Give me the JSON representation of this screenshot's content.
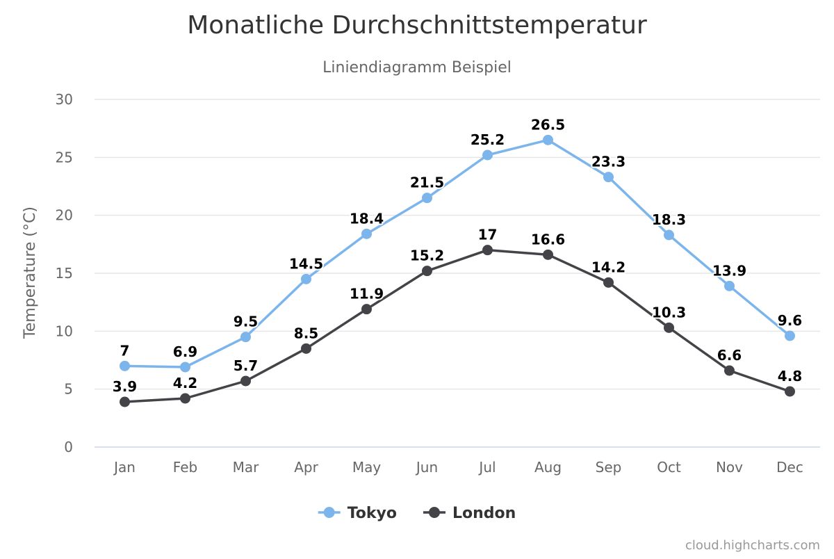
{
  "chart_data": {
    "type": "line",
    "title": "Monatliche Durchschnittstemperatur",
    "subtitle": "Liniendiagramm Beispiel",
    "ylabel": "Temperature (°C)",
    "xlabel": "",
    "categories": [
      "Jan",
      "Feb",
      "Mar",
      "Apr",
      "May",
      "Jun",
      "Jul",
      "Aug",
      "Sep",
      "Oct",
      "Nov",
      "Dec"
    ],
    "ylim": [
      0,
      30
    ],
    "yticks": [
      0,
      5,
      10,
      15,
      20,
      25,
      30
    ],
    "grid": true,
    "legend_position": "bottom-center",
    "data_labels": true,
    "series": [
      {
        "name": "Tokyo",
        "color": "#7cb5ec",
        "values": [
          7.0,
          6.9,
          9.5,
          14.5,
          18.4,
          21.5,
          25.2,
          26.5,
          23.3,
          18.3,
          13.9,
          9.6
        ]
      },
      {
        "name": "London",
        "color": "#434348",
        "values": [
          3.9,
          4.2,
          5.7,
          8.5,
          11.9,
          15.2,
          17.0,
          16.6,
          14.2,
          10.3,
          6.6,
          4.8
        ]
      }
    ]
  },
  "credits": "cloud.highcharts.com"
}
